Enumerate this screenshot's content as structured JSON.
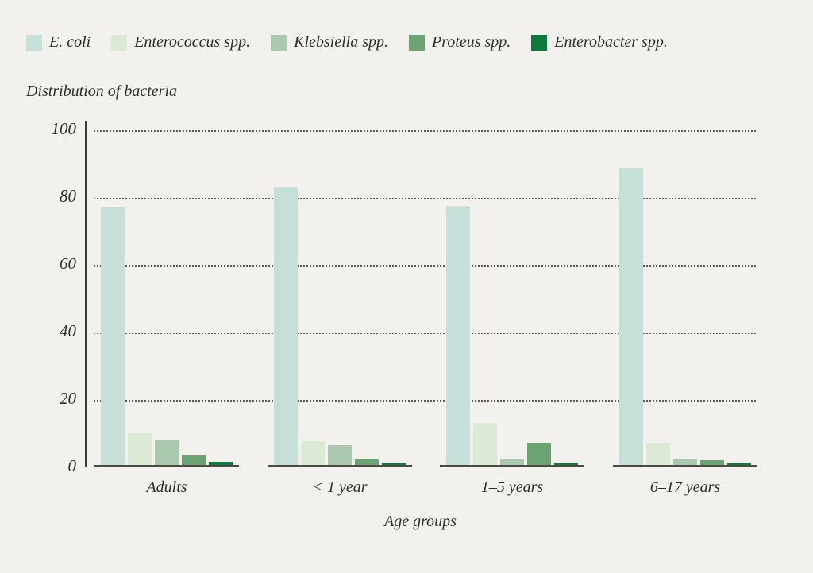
{
  "chart_title": "Distribution of bacteria",
  "chart_data": {
    "type": "bar",
    "title": "Distribution of bacteria",
    "xlabel": "Age groups",
    "ylabel": "",
    "ylim": [
      0,
      100
    ],
    "yticks": [
      0,
      20,
      40,
      60,
      80,
      100
    ],
    "grid": "horizontal dotted",
    "legend_position": "top",
    "categories": [
      "Adults",
      "< 1 year",
      "1–5 years",
      "6–17 years"
    ],
    "series": [
      {
        "name": "E. coli",
        "color": "#c6e0d9",
        "values": [
          76.5,
          82.5,
          77.0,
          88.0
        ]
      },
      {
        "name": "Enterococcus spp.",
        "color": "#dcead5",
        "values": [
          9.5,
          7.0,
          12.5,
          6.5
        ]
      },
      {
        "name": "Klebsiella spp.",
        "color": "#aac9af",
        "values": [
          7.5,
          6.0,
          2.0,
          2.0
        ]
      },
      {
        "name": "Proteus spp.",
        "color": "#6ba372",
        "values": [
          3.0,
          2.0,
          6.5,
          1.5
        ]
      },
      {
        "name": "Enterobacter spp.",
        "color": "#0b7a3c",
        "values": [
          1.0,
          0.5,
          0.5,
          0.5
        ]
      }
    ]
  },
  "colors": {
    "background": "#f2f1ee",
    "text": "#2e2d2a",
    "axis_line": "#3b3a37",
    "baseline": "#4b4a45",
    "gridline": "#5a5952"
  }
}
